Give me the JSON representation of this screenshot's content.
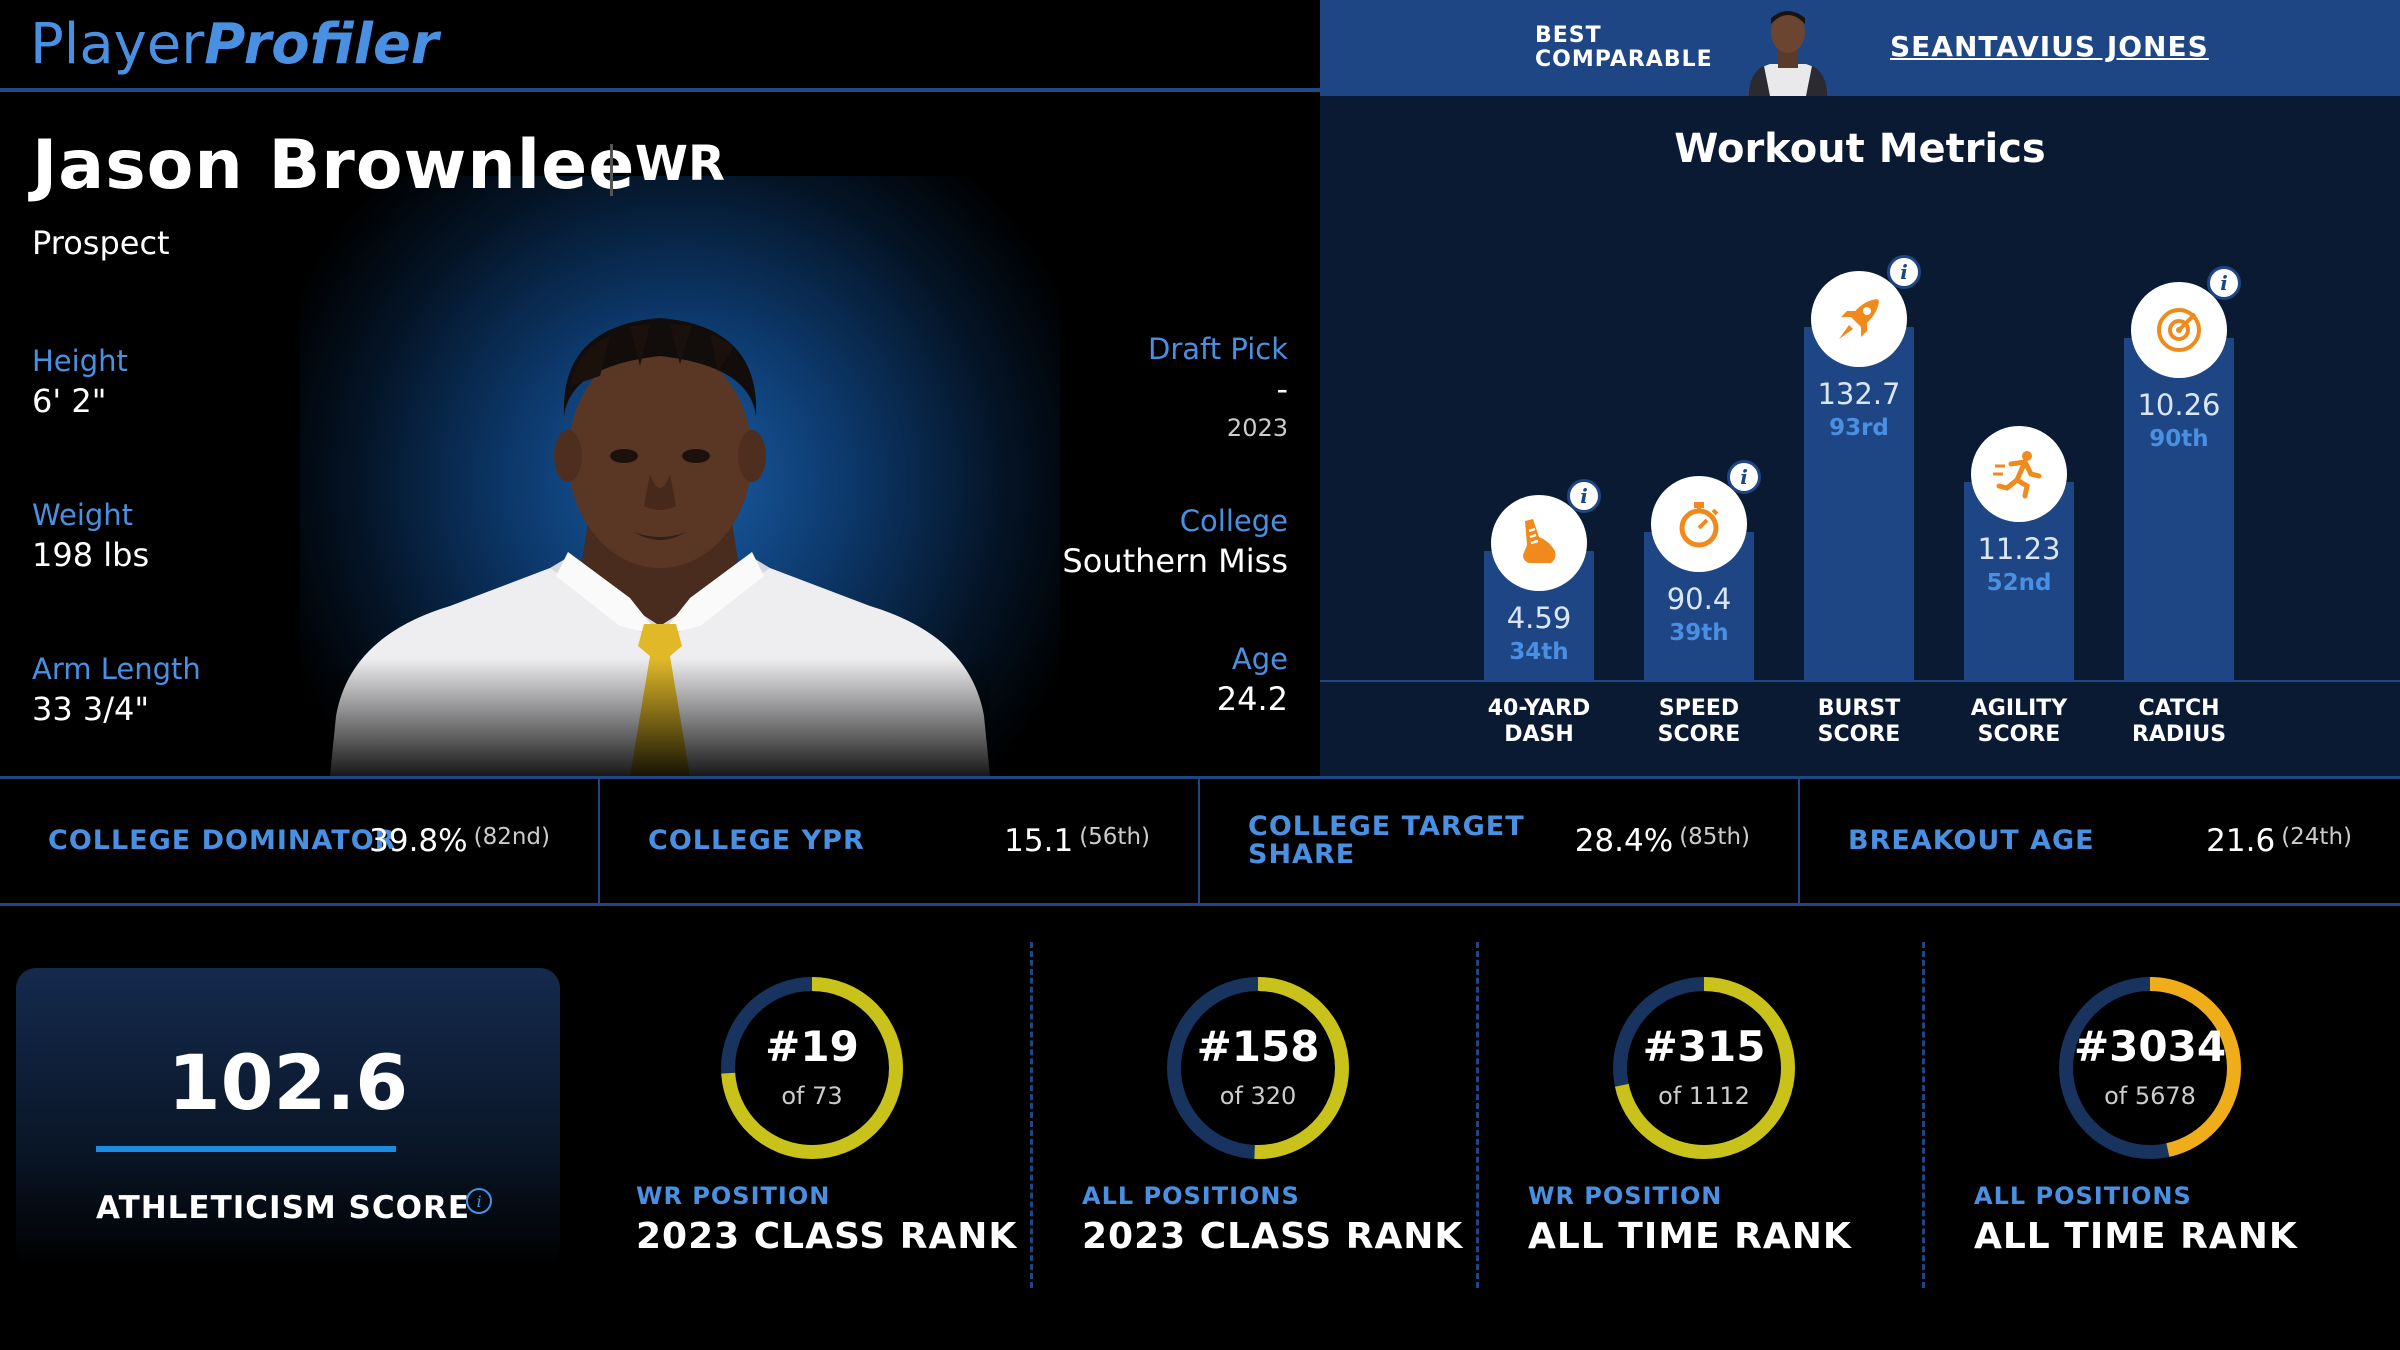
{
  "logo": {
    "part1": "Player",
    "part2": "Profiler"
  },
  "comparable": {
    "label_line1": "BEST",
    "label_line2": "COMPARABLE",
    "name": "SEANTAVIUS JONES"
  },
  "player": {
    "name": "Jason Brownlee",
    "position": "WR",
    "status": "Prospect",
    "height": {
      "label": "Height",
      "value": "6' 2\""
    },
    "weight": {
      "label": "Weight",
      "value": "198 lbs"
    },
    "arm_length": {
      "label": "Arm Length",
      "value": "33 3/4\""
    },
    "draft_pick": {
      "label": "Draft Pick",
      "value": "-",
      "year": "2023"
    },
    "college": {
      "label": "College",
      "value": "Southern Miss"
    },
    "age": {
      "label": "Age",
      "value": "24.2"
    }
  },
  "workout": {
    "title": "Workout Metrics",
    "metrics": [
      {
        "key": "forty",
        "label1": "40-YARD",
        "label2": "DASH",
        "value": "4.59",
        "percentile": "34th",
        "percentile_num": 34,
        "icon": "shoe-icon",
        "info": true
      },
      {
        "key": "speed",
        "label1": "SPEED",
        "label2": "SCORE",
        "value": "90.4",
        "percentile": "39th",
        "percentile_num": 39,
        "icon": "stopwatch-icon",
        "info": true
      },
      {
        "key": "burst",
        "label1": "BURST",
        "label2": "SCORE",
        "value": "132.7",
        "percentile": "93rd",
        "percentile_num": 93,
        "icon": "rocket-icon",
        "info": true
      },
      {
        "key": "agility",
        "label1": "AGILITY",
        "label2": "SCORE",
        "value": "11.23",
        "percentile": "52nd",
        "percentile_num": 52,
        "icon": "runner-icon",
        "info": false
      },
      {
        "key": "catch",
        "label1": "CATCH",
        "label2": "RADIUS",
        "value": "10.26",
        "percentile": "90th",
        "percentile_num": 90,
        "icon": "target-icon",
        "info": true
      }
    ]
  },
  "strip": [
    {
      "label": "COLLEGE DOMINATOR",
      "value": "39.8%",
      "pct": "(82nd)"
    },
    {
      "label": "COLLEGE YPR",
      "value": "15.1",
      "pct": "(56th)"
    },
    {
      "label": "COLLEGE TARGET SHARE",
      "value": "28.4%",
      "pct": "(85th)"
    },
    {
      "label": "BREAKOUT AGE",
      "value": "21.6",
      "pct": "(24th)"
    }
  ],
  "athleticism": {
    "value": "102.6",
    "label": "ATHLETICISM SCORE"
  },
  "ranks": [
    {
      "num": "#19",
      "of": "of 73",
      "rank": 19,
      "total": 73,
      "sub": "WR POSITION",
      "title": "2023 CLASS RANK",
      "color": "#c9c21b"
    },
    {
      "num": "#158",
      "of": "of 320",
      "rank": 158,
      "total": 320,
      "sub": "ALL POSITIONS",
      "title": "2023 CLASS RANK",
      "color": "#c9c21b"
    },
    {
      "num": "#315",
      "of": "of 1112",
      "rank": 315,
      "total": 1112,
      "sub": "WR POSITION",
      "title": "ALL TIME RANK",
      "color": "#c9c21b"
    },
    {
      "num": "#3034",
      "of": "of 5678",
      "rank": 3034,
      "total": 5678,
      "sub": "ALL POSITIONS",
      "title": "ALL TIME RANK",
      "color": "#f0ad1a"
    }
  ],
  "colors": {
    "accent": "#4a90e2",
    "bar": "#1e4584",
    "icon": "#f08a1c",
    "ring_track": "#17335e"
  }
}
